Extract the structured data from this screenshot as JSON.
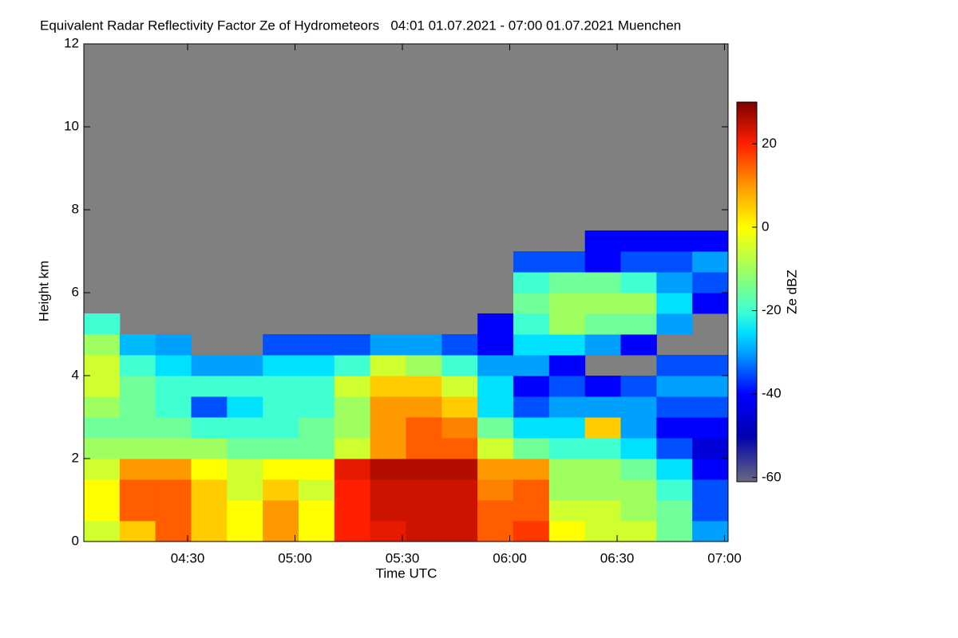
{
  "chart_data": {
    "type": "heatmap",
    "title": "Equivalent Radar Reflectivity Factor Ze of Hydrometeors   04:01 01.07.2021 - 07:00 01.07.2021 Muenchen",
    "x_label": "Time UTC",
    "y_label": "Height km",
    "colorbar_label": "Ze dBZ",
    "xlim": [
      241,
      421
    ],
    "ylim": [
      0,
      12
    ],
    "xticks": [
      {
        "value": 270,
        "label": "04:30"
      },
      {
        "value": 300,
        "label": "05:00"
      },
      {
        "value": 330,
        "label": "05:30"
      },
      {
        "value": 360,
        "label": "06:00"
      },
      {
        "value": 390,
        "label": "06:30"
      },
      {
        "value": 420,
        "label": "07:00"
      }
    ],
    "yticks": [
      0,
      2,
      4,
      6,
      8,
      10,
      12
    ],
    "zlim": [
      -61,
      30
    ],
    "zticks": [
      20,
      0,
      -20,
      -40,
      -60
    ],
    "background": "#808080",
    "colorscale": [
      [
        -61,
        "#6a6a80"
      ],
      [
        -50,
        "#0000b0"
      ],
      [
        -40,
        "#0000ff"
      ],
      [
        -30,
        "#00a0ff"
      ],
      [
        -25,
        "#00e0ff"
      ],
      [
        -20,
        "#40ffd0"
      ],
      [
        -10,
        "#a0ff60"
      ],
      [
        0,
        "#ffff00"
      ],
      [
        10,
        "#ff9900"
      ],
      [
        20,
        "#ff2000"
      ],
      [
        30,
        "#800000"
      ]
    ],
    "x_bins": [
      241,
      251,
      261,
      271,
      281,
      291,
      301,
      311,
      321,
      331,
      341,
      351,
      361,
      371,
      381,
      391,
      401,
      411,
      421
    ],
    "y_bins": [
      0,
      0.5,
      1,
      1.5,
      2,
      2.5,
      3,
      3.5,
      4,
      4.5,
      5,
      5.5,
      6,
      6.5,
      7,
      7.5,
      8
    ],
    "z": [
      [
        -5,
        0,
        0,
        -5,
        -10,
        -15,
        -10,
        -5,
        -5,
        -10,
        -20,
        null,
        null,
        null,
        null,
        null
      ],
      [
        5,
        15,
        15,
        10,
        -10,
        -15,
        -15,
        -15,
        -20,
        -28,
        null,
        null,
        null,
        null,
        null,
        null
      ],
      [
        15,
        15,
        15,
        10,
        -10,
        -15,
        -20,
        -20,
        -25,
        -30,
        null,
        null,
        null,
        null,
        null,
        null
      ],
      [
        5,
        5,
        5,
        0,
        -10,
        -20,
        -35,
        -20,
        -30,
        null,
        null,
        null,
        null,
        null,
        null,
        null
      ],
      [
        0,
        0,
        -5,
        -5,
        -15,
        -20,
        -25,
        -20,
        -30,
        null,
        null,
        null,
        null,
        null,
        null,
        null
      ],
      [
        10,
        10,
        5,
        0,
        -15,
        -20,
        -20,
        -20,
        -25,
        -35,
        null,
        null,
        null,
        null,
        null,
        null
      ],
      [
        0,
        0,
        -5,
        0,
        -15,
        -15,
        -20,
        -20,
        -25,
        -35,
        null,
        null,
        null,
        null,
        null,
        null
      ],
      [
        20,
        20,
        20,
        22,
        -5,
        -10,
        -10,
        -5,
        -20,
        -35,
        null,
        null,
        null,
        null,
        null,
        null
      ],
      [
        22,
        24,
        24,
        26,
        10,
        10,
        10,
        5,
        -5,
        -30,
        null,
        null,
        null,
        null,
        null,
        null
      ],
      [
        24,
        24,
        24,
        26,
        15,
        15,
        10,
        5,
        -10,
        -30,
        null,
        null,
        null,
        null,
        null,
        null
      ],
      [
        24,
        24,
        24,
        26,
        15,
        12,
        5,
        -5,
        -20,
        -35,
        null,
        null,
        null,
        null,
        null,
        null
      ],
      [
        15,
        15,
        12,
        10,
        -5,
        -15,
        -25,
        -25,
        -30,
        -40,
        -40,
        null,
        null,
        null,
        null,
        null
      ],
      [
        18,
        15,
        15,
        10,
        -15,
        -25,
        -35,
        -40,
        -30,
        -25,
        -20,
        -15,
        -20,
        -35,
        null,
        null
      ],
      [
        0,
        -5,
        -10,
        -10,
        -20,
        -25,
        -30,
        -35,
        -40,
        -25,
        -10,
        -10,
        -15,
        -35,
        null,
        null
      ],
      [
        -5,
        -5,
        -10,
        -10,
        -20,
        5,
        -30,
        -40,
        null,
        -30,
        -15,
        -10,
        -15,
        -40,
        -40,
        null
      ],
      [
        -5,
        -10,
        -10,
        -15,
        -25,
        -30,
        -30,
        -35,
        null,
        -40,
        -15,
        -10,
        -20,
        -35,
        -40,
        null
      ],
      [
        -15,
        -15,
        -20,
        -25,
        -35,
        -40,
        -35,
        -30,
        -35,
        null,
        -30,
        -25,
        -30,
        -35,
        -40,
        null
      ],
      [
        -30,
        -35,
        -35,
        -40,
        -45,
        -40,
        -35,
        -30,
        -35,
        null,
        null,
        -40,
        -35,
        -30,
        -40,
        null
      ]
    ]
  }
}
